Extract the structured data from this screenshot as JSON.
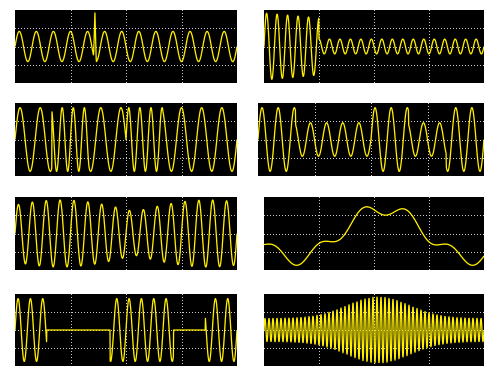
{
  "colors": {
    "background": "#ffffff",
    "screen": "#000000",
    "grid": "#c8c8c8",
    "trace": "#ffee00"
  },
  "chart_data": [
    {
      "type": "line",
      "title": "",
      "description_id": "sine-with-spike",
      "signal": {
        "kind": "spike",
        "amplitude": 0.45,
        "cycles": 13,
        "spike_at": 0.36,
        "spike_height": 1.0
      },
      "grid": true
    },
    {
      "type": "line",
      "title": "",
      "description_id": "decay-to-steady",
      "signal": {
        "kind": "transient",
        "amplitude_start": 1.0,
        "amplitude_end": 0.22,
        "cycles": 21,
        "break_at": 0.25
      },
      "grid": true
    },
    {
      "type": "line",
      "title": "",
      "description_id": "fsk-full",
      "signal": {
        "kind": "fsk",
        "amplitude": 0.95,
        "freq_low": 11,
        "freq_high": 20,
        "segments": [
          0,
          1,
          0,
          1,
          0,
          0
        ]
      },
      "grid": true
    },
    {
      "type": "line",
      "title": "",
      "description_id": "ask-two-level",
      "signal": {
        "kind": "ask",
        "amplitude_high": 0.95,
        "amplitude_low": 0.5,
        "cycles": 14,
        "segments": [
          1,
          0,
          0,
          1,
          0,
          1
        ]
      },
      "grid": true
    },
    {
      "type": "line",
      "title": "",
      "description_id": "am-modulated",
      "signal": {
        "kind": "am",
        "carrier_cycles": 16,
        "mod_cycles": 1.5,
        "depth": 0.35
      },
      "grid": true
    },
    {
      "type": "line",
      "title": "",
      "description_id": "sine-plus-harmonic",
      "signal": {
        "kind": "sum",
        "base_cycles": 1.25,
        "base_amp": 0.75,
        "harm_cycles": 5,
        "harm_amp": 0.2
      },
      "grid": true
    },
    {
      "type": "line",
      "title": "",
      "description_id": "ook-on-off",
      "signal": {
        "kind": "ook",
        "amplitude": 0.95,
        "cycles": 18,
        "segments": [
          1,
          0,
          0,
          1,
          1,
          0,
          1
        ]
      },
      "grid": true
    },
    {
      "type": "line",
      "title": "",
      "description_id": "gaussian-burst",
      "signal": {
        "kind": "burst",
        "carrier_cycles": 55,
        "floor": 0.35,
        "peak": 1.0,
        "center": 0.52,
        "width": 0.2
      },
      "grid": true
    }
  ]
}
